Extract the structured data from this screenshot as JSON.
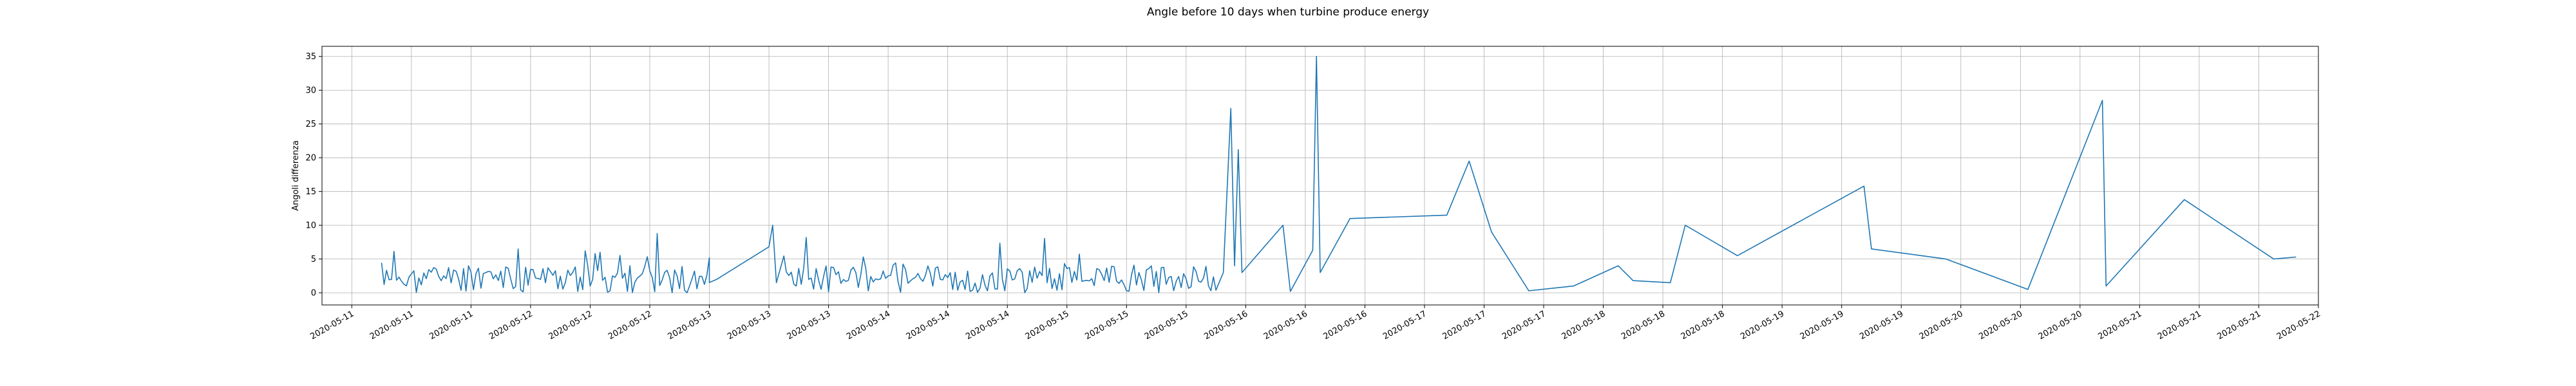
{
  "chart_data": {
    "type": "line",
    "title": "Angle before 10 days when turbine produce energy",
    "xlabel": "",
    "ylabel": "Angoli differenza",
    "grid": true,
    "ylim": [
      -1.8,
      36.5
    ],
    "yticks": [
      0,
      5,
      10,
      15,
      20,
      25,
      30,
      35
    ],
    "xtick_labels": [
      "2020-05-11",
      "2020-05-11",
      "2020-05-11",
      "2020-05-12",
      "2020-05-12",
      "2020-05-12",
      "2020-05-13",
      "2020-05-13",
      "2020-05-13",
      "2020-05-14",
      "2020-05-14",
      "2020-05-14",
      "2020-05-15",
      "2020-05-15",
      "2020-05-15",
      "2020-05-16",
      "2020-05-16",
      "2020-05-16",
      "2020-05-17",
      "2020-05-17",
      "2020-05-17",
      "2020-05-18",
      "2020-05-18",
      "2020-05-18",
      "2020-05-19",
      "2020-05-19",
      "2020-05-19",
      "2020-05-20",
      "2020-05-20",
      "2020-05-20",
      "2020-05-21",
      "2020-05-21",
      "2020-05-21",
      "2020-05-22"
    ],
    "series": [
      {
        "color": "#1f77b4",
        "segments": [
          {
            "x_start": "2020-05-11 04:00",
            "x_end": "2020-05-13 00:00",
            "seed": 11,
            "base": 2.5,
            "amp": 7
          },
          {
            "x_start": "2020-05-13 10:00",
            "x_end": "2020-05-15 20:00",
            "seed": 23,
            "base": 2.5,
            "amp": 7
          }
        ],
        "points": [
          {
            "x": "2020-05-13 00:00",
            "y": 5.2
          },
          {
            "x": "2020-05-13 01:00",
            "y": 2.0
          },
          {
            "x": "2020-05-13 08:00",
            "y": 6.8
          },
          {
            "x": "2020-05-13 08:30",
            "y": 10.0
          },
          {
            "x": "2020-05-13 09:00",
            "y": 1.5
          },
          {
            "x": "2020-05-15 21:00",
            "y": 3.0
          },
          {
            "x": "2020-05-15 22:00",
            "y": 27.3
          },
          {
            "x": "2020-05-15 22:30",
            "y": 4.0
          },
          {
            "x": "2020-05-15 23:00",
            "y": 21.2
          },
          {
            "x": "2020-05-15 23:30",
            "y": 3.0
          },
          {
            "x": "2020-05-16 05:00",
            "y": 10.0
          },
          {
            "x": "2020-05-16 06:00",
            "y": 0.2
          },
          {
            "x": "2020-05-16 09:00",
            "y": 6.3
          },
          {
            "x": "2020-05-16 09:30",
            "y": 35.0
          },
          {
            "x": "2020-05-16 10:00",
            "y": 3.0
          },
          {
            "x": "2020-05-16 14:00",
            "y": 11.0
          },
          {
            "x": "2020-05-17 03:00",
            "y": 11.5
          },
          {
            "x": "2020-05-17 06:00",
            "y": 19.5
          },
          {
            "x": "2020-05-17 09:00",
            "y": 9.0
          },
          {
            "x": "2020-05-17 14:00",
            "y": 0.3
          },
          {
            "x": "2020-05-17 20:00",
            "y": 1.0
          },
          {
            "x": "2020-05-18 02:00",
            "y": 4.0
          },
          {
            "x": "2020-05-18 04:00",
            "y": 1.8
          },
          {
            "x": "2020-05-18 09:00",
            "y": 1.5
          },
          {
            "x": "2020-05-18 11:00",
            "y": 10.0
          },
          {
            "x": "2020-05-18 18:00",
            "y": 5.5
          },
          {
            "x": "2020-05-19 11:00",
            "y": 15.8
          },
          {
            "x": "2020-05-19 12:00",
            "y": 6.5
          },
          {
            "x": "2020-05-19 22:00",
            "y": 5.0
          },
          {
            "x": "2020-05-20 09:00",
            "y": 0.5
          },
          {
            "x": "2020-05-20 19:00",
            "y": 28.5
          },
          {
            "x": "2020-05-20 19:30",
            "y": 1.0
          },
          {
            "x": "2020-05-21 06:00",
            "y": 13.8
          },
          {
            "x": "2020-05-21 18:00",
            "y": 5.0
          },
          {
            "x": "2020-05-21 21:00",
            "y": 5.3
          }
        ]
      }
    ]
  }
}
